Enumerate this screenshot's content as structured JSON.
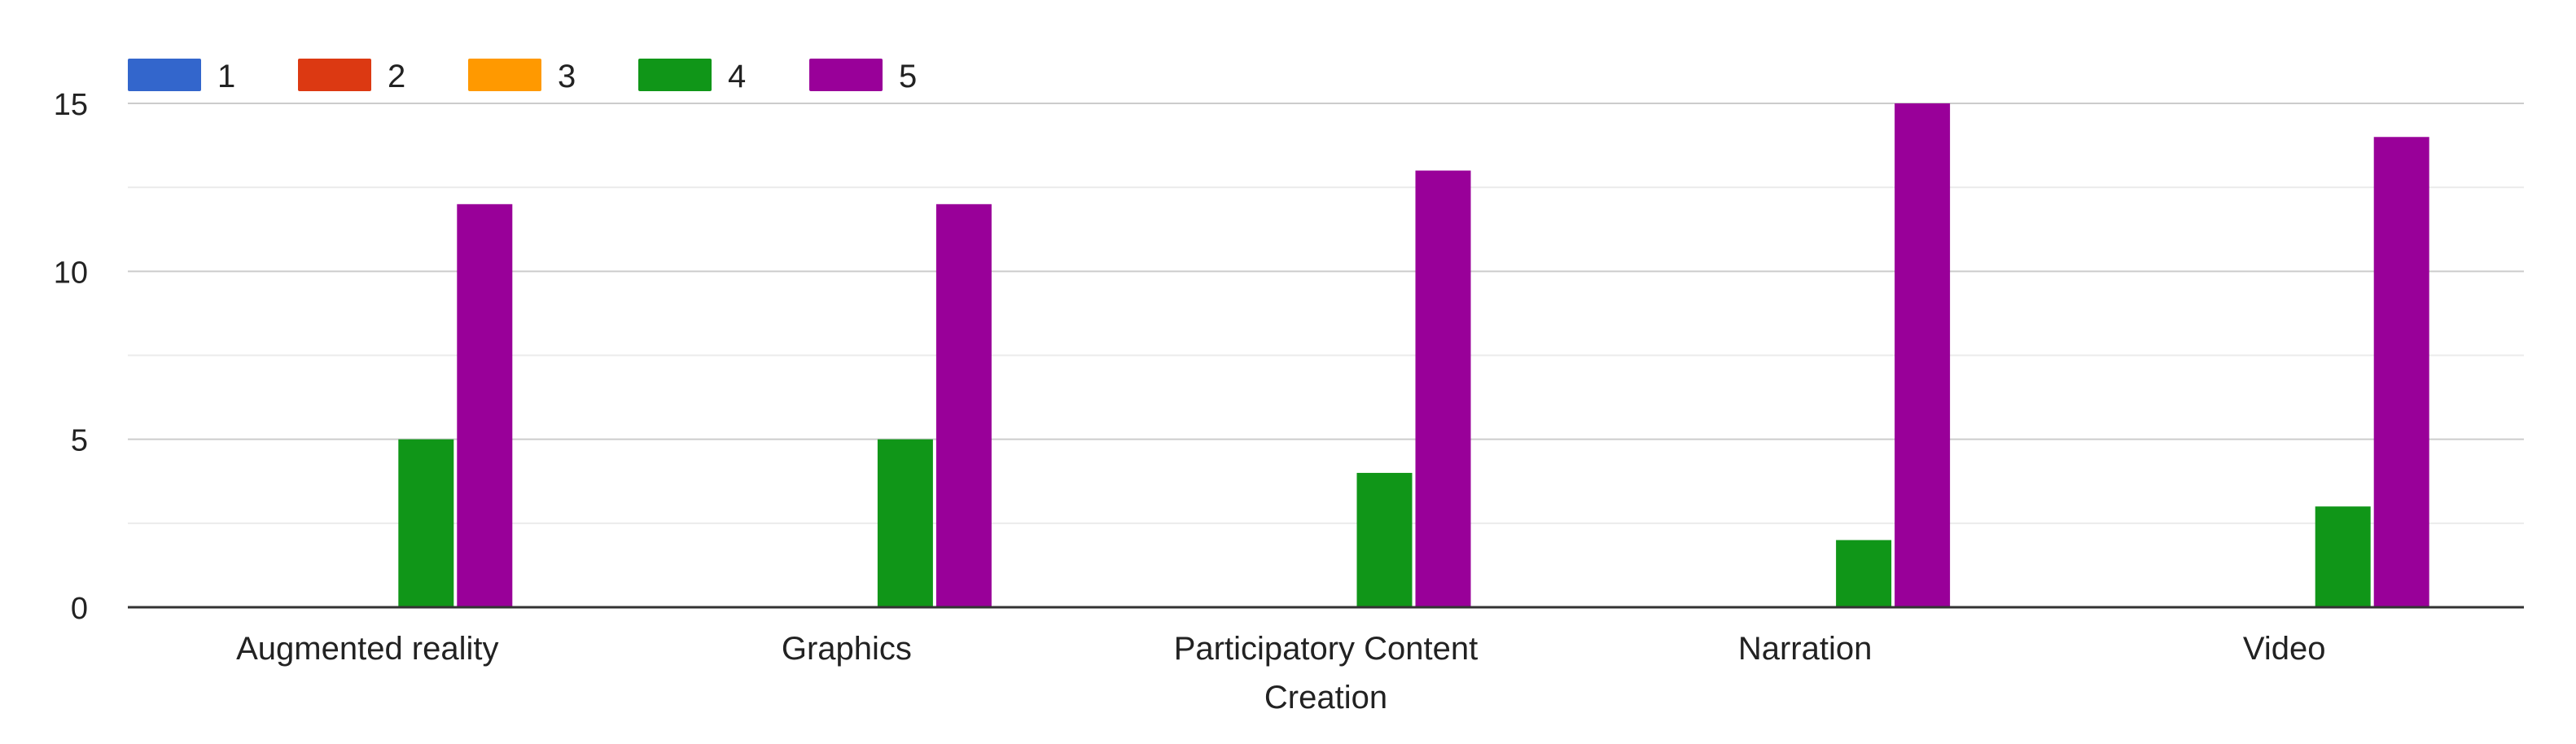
{
  "chart_data": {
    "type": "bar",
    "title": "",
    "xlabel": "",
    "ylabel": "",
    "categories": [
      [
        "Augmented reality"
      ],
      [
        "Graphics"
      ],
      [
        "Participatory Content",
        "Creation"
      ],
      [
        "Narration"
      ],
      [
        "Video"
      ]
    ],
    "series": [
      {
        "name": "1",
        "color": "#3366cc",
        "values": [
          0,
          0,
          0,
          0,
          0
        ]
      },
      {
        "name": "2",
        "color": "#dc3912",
        "values": [
          0,
          0,
          0,
          0,
          0
        ]
      },
      {
        "name": "3",
        "color": "#ff9900",
        "values": [
          0,
          0,
          0,
          0,
          0
        ]
      },
      {
        "name": "4",
        "color": "#109618",
        "values": [
          5,
          5,
          4,
          2,
          3
        ]
      },
      {
        "name": "5",
        "color": "#990099",
        "values": [
          12,
          12,
          13,
          15,
          14
        ]
      }
    ],
    "ylim": [
      0,
      15
    ],
    "yticks": [
      0,
      5,
      10,
      15
    ],
    "minor_gridlines": [
      2.5,
      7.5,
      12.5
    ],
    "grid": true,
    "legend_position": "top-left"
  }
}
